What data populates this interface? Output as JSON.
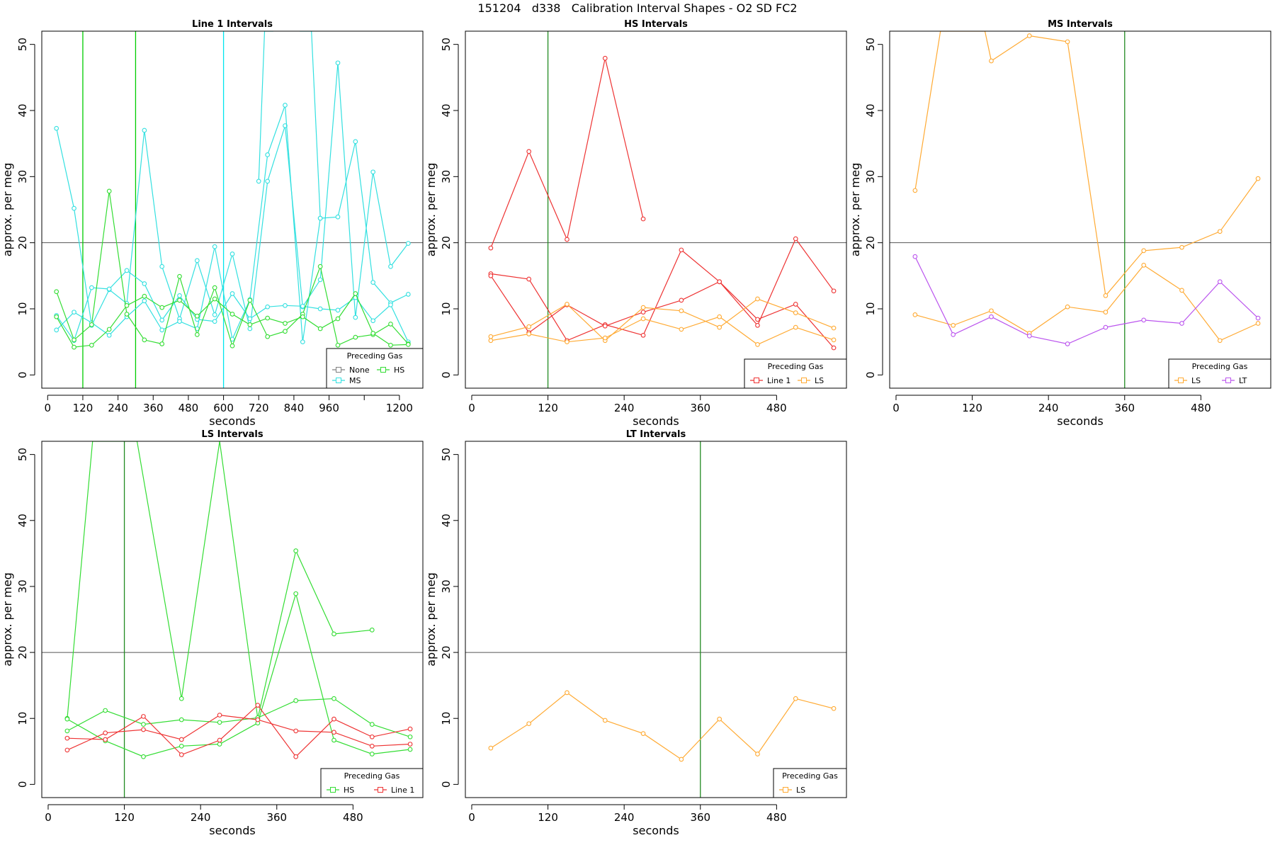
{
  "page": {
    "title": "151204   d338   Calibration Interval Shapes - O2 SD FC2"
  },
  "chart_data": [
    {
      "type": "line",
      "title": "Line 1 Intervals",
      "xlabel": "seconds",
      "ylabel": "approx. per meg",
      "xlim": [
        -20,
        1280
      ],
      "ylim": [
        -2,
        52
      ],
      "xticks": [
        0,
        120,
        240,
        360,
        480,
        600,
        720,
        840,
        960,
        1080,
        1200
      ],
      "xtick_labels": [
        "0",
        "120",
        "240",
        "360",
        "480",
        "600",
        "720",
        "840",
        "960",
        "",
        "1200"
      ],
      "yticks": [
        0,
        10,
        20,
        30,
        40,
        50
      ],
      "hline": 20,
      "vlines": [
        {
          "x": 120,
          "color": "#00cc00"
        },
        {
          "x": 300,
          "color": "#00cc00"
        },
        {
          "x": 600,
          "color": "#00e5ee"
        }
      ],
      "legend": {
        "title": "Preceding Gas",
        "position": "bottom-right",
        "columns": 2,
        "entries": [
          {
            "label": "None",
            "color": "#808080"
          },
          {
            "label": "HS",
            "color": "#33dd33"
          },
          {
            "label": "MS",
            "color": "#33e0e0"
          }
        ]
      },
      "series": [
        {
          "color": "#33e0e0",
          "x": [
            30,
            90,
            150,
            210,
            270,
            330,
            390,
            450,
            510,
            570,
            630,
            690,
            750,
            810,
            870,
            930,
            990,
            1050,
            1110,
            1170,
            1230
          ],
          "y": [
            37.3,
            25.2,
            7.5,
            12.9,
            10.8,
            37,
            16.4,
            8.5,
            17.3,
            9.1,
            18.3,
            7,
            29.3,
            37.7,
            10.3,
            14.4,
            47.2,
            8.7,
            30.7,
            16.4,
            19.9
          ]
        },
        {
          "color": "#33e0e0",
          "x": [
            30,
            90,
            150,
            210,
            270,
            330,
            390,
            450,
            510,
            570,
            630,
            690,
            750,
            810,
            870,
            930,
            990,
            1050,
            1110,
            1170,
            1230
          ],
          "y": [
            6.8,
            9.5,
            7.9,
            6,
            8.8,
            11.2,
            6.8,
            8.1,
            7,
            19.4,
            5.4,
            11.4,
            33.3,
            40.8,
            5,
            23.7,
            23.9,
            35.3,
            14,
            10.9,
            12.2
          ]
        },
        {
          "color": "#33e0e0",
          "x": [
            30,
            90,
            150,
            210,
            270,
            330,
            390,
            450,
            510,
            570,
            630,
            690,
            750,
            810,
            870,
            930,
            990,
            1050,
            1110,
            1170,
            1230
          ],
          "y": [
            9,
            5.2,
            13.2,
            13,
            15.8,
            13.8,
            8.3,
            12,
            8.4,
            8.1,
            12.3,
            8.5,
            10.3,
            10.5,
            10.4,
            10,
            9.8,
            11.7,
            8.2,
            10.6,
            5
          ]
        },
        {
          "color": "#33e0e0",
          "x": [
            120,
            160,
            200
          ],
          "y": [
            52,
            70,
            52
          ]
        },
        {
          "color": "#33e0e0",
          "x": [
            720,
            740,
            770
          ],
          "y": [
            29.3,
            52,
            52
          ]
        },
        {
          "color": "#33e0e0",
          "x": [
            860,
            900,
            930
          ],
          "y": [
            52,
            52,
            23.7
          ]
        },
        {
          "color": "#33dd33",
          "x": [
            30,
            90,
            150,
            210,
            270,
            330,
            390,
            450,
            510,
            570,
            630,
            690,
            750,
            810,
            870,
            930,
            990,
            1050,
            1110,
            1170,
            1230
          ],
          "y": [
            12.6,
            5.3,
            7.6,
            27.8,
            9.2,
            5.3,
            4.7,
            14.9,
            6.1,
            13.2,
            4.4,
            11.3,
            5.8,
            6.6,
            9.2,
            16.4,
            4.5,
            5.7,
            6.1,
            7.7,
            4.7
          ]
        },
        {
          "color": "#33dd33",
          "x": [
            30,
            90,
            150,
            210,
            270,
            330,
            390,
            450,
            510,
            570,
            630,
            690,
            750,
            810,
            870,
            930,
            990,
            1050,
            1110,
            1170,
            1230
          ],
          "y": [
            8.8,
            4.2,
            4.5,
            6.9,
            10.5,
            11.9,
            10.2,
            11.3,
            8.9,
            11.5,
            9.2,
            7.6,
            8.6,
            7.8,
            8.8,
            7,
            8.5,
            12.3,
            6.3,
            4.5,
            4.6
          ]
        }
      ]
    },
    {
      "type": "line",
      "title": "HS Intervals",
      "xlabel": "seconds",
      "ylabel": "approx. per meg",
      "xlim": [
        -10,
        590
      ],
      "ylim": [
        -2,
        52
      ],
      "xticks": [
        0,
        120,
        240,
        360,
        480
      ],
      "xtick_labels": [
        "0",
        "120",
        "240",
        "360",
        "480"
      ],
      "yticks": [
        0,
        10,
        20,
        30,
        40,
        50
      ],
      "hline": 20,
      "vlines": [
        {
          "x": 120,
          "color": "#228b22"
        }
      ],
      "legend": {
        "title": "Preceding Gas",
        "position": "bottom-right",
        "columns": 2,
        "entries": [
          {
            "label": "Line 1",
            "color": "#ee3333"
          },
          {
            "label": "LS",
            "color": "#ffaa33"
          }
        ]
      },
      "series": [
        {
          "color": "#ee3333",
          "x": [
            30,
            90,
            150,
            210,
            270
          ],
          "y": [
            19.2,
            33.8,
            20.5,
            47.9,
            23.6
          ]
        },
        {
          "color": "#ee3333",
          "x": [
            30,
            90,
            150,
            210,
            270,
            330,
            390,
            450,
            510,
            570
          ],
          "y": [
            15.3,
            14.5,
            5.2,
            7.6,
            6,
            18.9,
            14.1,
            7.5,
            20.6,
            12.7
          ]
        },
        {
          "color": "#ee3333",
          "x": [
            30,
            90,
            150,
            210,
            270,
            330,
            390,
            450,
            510,
            570
          ],
          "y": [
            15,
            6.4,
            10.6,
            7.4,
            9.5,
            11.3,
            14.1,
            8.4,
            10.7,
            4.1
          ]
        },
        {
          "color": "#ffaa33",
          "x": [
            30,
            90,
            150,
            210,
            270,
            330,
            390,
            450,
            510,
            570
          ],
          "y": [
            5.8,
            7.3,
            10.7,
            5.2,
            10.2,
            9.7,
            7.2,
            11.5,
            9.4,
            7.1
          ]
        },
        {
          "color": "#ffaa33",
          "x": [
            30,
            90,
            150,
            210,
            270,
            330,
            390,
            450,
            510,
            570
          ],
          "y": [
            5.2,
            6.2,
            5,
            5.6,
            8.5,
            6.9,
            8.8,
            4.6,
            7.2,
            5.3
          ]
        }
      ]
    },
    {
      "type": "line",
      "title": "MS Intervals",
      "xlabel": "seconds",
      "ylabel": "approx. per meg",
      "xlim": [
        -10,
        590
      ],
      "ylim": [
        -2,
        52
      ],
      "xticks": [
        0,
        120,
        240,
        360,
        480
      ],
      "xtick_labels": [
        "0",
        "120",
        "240",
        "360",
        "480"
      ],
      "yticks": [
        0,
        10,
        20,
        30,
        40,
        50
      ],
      "hline": 20,
      "vlines": [
        {
          "x": 360,
          "color": "#228b22"
        }
      ],
      "legend": {
        "title": "Preceding Gas",
        "position": "bottom-right",
        "columns": 2,
        "entries": [
          {
            "label": "LS",
            "color": "#ffaa33"
          },
          {
            "label": "LT",
            "color": "#bb55ee"
          }
        ]
      },
      "series": [
        {
          "color": "#ffaa33",
          "x": [
            30,
            70,
            140,
            150,
            210,
            270,
            330,
            390,
            450,
            510,
            570
          ],
          "y": [
            27.9,
            52,
            52,
            47.5,
            51.3,
            50.4,
            12,
            18.8,
            19.3,
            21.7,
            29.7
          ]
        },
        {
          "color": "#ffaa33",
          "x": [
            30,
            90,
            150,
            210,
            270,
            330,
            390,
            450,
            510,
            570
          ],
          "y": [
            9.1,
            7.5,
            9.7,
            6.3,
            10.3,
            9.5,
            16.6,
            12.8,
            5.2,
            7.8
          ]
        },
        {
          "color": "#bb55ee",
          "x": [
            30,
            90,
            150,
            210,
            270,
            330,
            390,
            450,
            510,
            570
          ],
          "y": [
            17.9,
            6.1,
            8.8,
            5.9,
            4.7,
            7.2,
            8.3,
            7.8,
            14.1,
            8.6
          ]
        }
      ]
    },
    {
      "type": "line",
      "title": "LS Intervals",
      "xlabel": "seconds",
      "ylabel": "approx. per meg",
      "xlim": [
        -10,
        590
      ],
      "ylim": [
        -2,
        52
      ],
      "xticks": [
        0,
        120,
        240,
        360,
        480
      ],
      "xtick_labels": [
        "0",
        "120",
        "240",
        "360",
        "480"
      ],
      "yticks": [
        0,
        10,
        20,
        30,
        40,
        50
      ],
      "hline": 20,
      "vlines": [
        {
          "x": 120,
          "color": "#228b22"
        }
      ],
      "legend": {
        "title": "Preceding Gas",
        "position": "bottom-right",
        "columns": 2,
        "entries": [
          {
            "label": "HS",
            "color": "#33dd33"
          },
          {
            "label": "Line 1",
            "color": "#ee3333"
          }
        ]
      },
      "series": [
        {
          "color": "#33dd33",
          "x": [
            30,
            70,
            140,
            210,
            270,
            330,
            390,
            450,
            510
          ],
          "y": [
            10,
            52,
            52,
            13,
            52,
            10,
            35.4,
            22.8,
            23.4
          ]
        },
        {
          "color": "#33dd33",
          "x": [
            30,
            90,
            150,
            210,
            270,
            330,
            390,
            450,
            510,
            570
          ],
          "y": [
            8.1,
            11.2,
            9.1,
            9.8,
            9.4,
            10.1,
            12.7,
            13,
            9.1,
            7.2
          ]
        },
        {
          "color": "#33dd33",
          "x": [
            30,
            90,
            150,
            210,
            270,
            330,
            390,
            450,
            510,
            570
          ],
          "y": [
            9.9,
            6.6,
            4.2,
            5.8,
            6.1,
            9.3,
            28.9,
            6.7,
            4.6,
            5.3
          ]
        },
        {
          "color": "#ee3333",
          "x": [
            30,
            90,
            150,
            210,
            270,
            330,
            390,
            450,
            510,
            570
          ],
          "y": [
            7,
            6.8,
            10.3,
            4.5,
            6.7,
            12,
            4.2,
            9.9,
            7.2,
            8.4
          ]
        },
        {
          "color": "#ee3333",
          "x": [
            30,
            90,
            150,
            210,
            270,
            330,
            390,
            450,
            510,
            570
          ],
          "y": [
            5.2,
            7.8,
            8.3,
            6.8,
            10.5,
            9.8,
            8.1,
            7.9,
            5.8,
            6.1
          ]
        }
      ]
    },
    {
      "type": "line",
      "title": "LT Intervals",
      "xlabel": "seconds",
      "ylabel": "approx. per meg",
      "xlim": [
        -10,
        590
      ],
      "ylim": [
        -2,
        52
      ],
      "xticks": [
        0,
        120,
        240,
        360,
        480
      ],
      "xtick_labels": [
        "0",
        "120",
        "240",
        "360",
        "480"
      ],
      "yticks": [
        0,
        10,
        20,
        30,
        40,
        50
      ],
      "hline": 20,
      "vlines": [
        {
          "x": 360,
          "color": "#228b22"
        }
      ],
      "legend": {
        "title": "Preceding Gas",
        "position": "bottom-right",
        "columns": 1,
        "entries": [
          {
            "label": "LS",
            "color": "#ffaa33"
          }
        ]
      },
      "series": [
        {
          "color": "#ffaa33",
          "x": [
            30,
            90,
            150,
            210,
            270,
            330,
            390,
            450,
            510,
            570
          ],
          "y": [
            5.5,
            9.2,
            13.9,
            9.7,
            7.7,
            3.8,
            9.9,
            4.6,
            13,
            11.5
          ]
        }
      ]
    }
  ]
}
